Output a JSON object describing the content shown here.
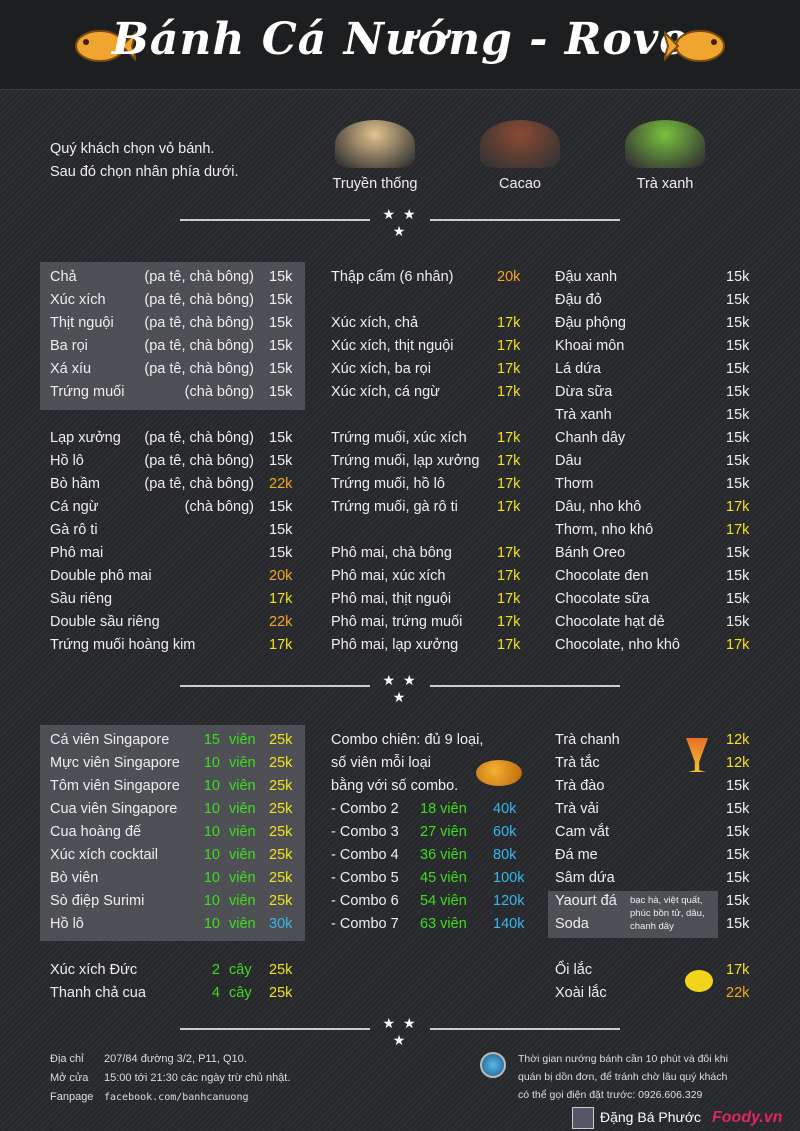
{
  "header": {
    "title": "Bánh Cá Nướng - Rove"
  },
  "intro": {
    "line1": "Quý khách chọn vỏ bánh.",
    "line2": "Sau đó chọn nhân phía dưới."
  },
  "crusts": [
    {
      "label": "Truyền thống",
      "color": "#e3c48e"
    },
    {
      "label": "Cacao",
      "color": "#8a4a32"
    },
    {
      "label": "Trà xanh",
      "color": "#79c23c"
    }
  ],
  "stars": "★ ★ ★",
  "section1": {
    "col1": [
      {
        "name": "Chả",
        "note": "(pa tê, chà bông)",
        "price": "15k",
        "tone": "white"
      },
      {
        "name": "Xúc xích",
        "note": "(pa tê, chà bông)",
        "price": "15k",
        "tone": "white"
      },
      {
        "name": "Thịt nguội",
        "note": "(pa tê, chà bông)",
        "price": "15k",
        "tone": "white"
      },
      {
        "name": "Ba rọi",
        "note": "(pa tê, chà bông)",
        "price": "15k",
        "tone": "white"
      },
      {
        "name": "Xá xíu",
        "note": "(pa tê, chà bông)",
        "price": "15k",
        "tone": "white"
      },
      {
        "name": "Trứng muối",
        "note": "(chà bông)",
        "price": "15k",
        "tone": "white"
      },
      {},
      {
        "name": "Lạp xưởng",
        "note": "(pa tê, chà bông)",
        "price": "15k",
        "tone": "white"
      },
      {
        "name": "Hồ lô",
        "note": "(pa tê, chà bông)",
        "price": "15k",
        "tone": "white"
      },
      {
        "name": "Bò hầm",
        "note": "(pa tê, chà bông)",
        "price": "22k",
        "tone": "orange"
      },
      {
        "name": "Cá ngừ",
        "note": "(chà bông)",
        "price": "15k",
        "tone": "white"
      },
      {
        "name": "Gà rô ti",
        "price": "15k",
        "tone": "white"
      },
      {
        "name": "Phô mai",
        "price": "15k",
        "tone": "white"
      },
      {
        "name": "Double phô mai",
        "price": "20k",
        "tone": "orange"
      },
      {
        "name": "Sầu riêng",
        "price": "17k",
        "tone": "yellow"
      },
      {
        "name": "Double sầu riêng",
        "price": "22k",
        "tone": "orange"
      },
      {
        "name": "Trứng muối hoàng kim",
        "price": "17k",
        "tone": "yellow"
      }
    ],
    "col2": [
      {
        "name": "Thập cẩm (6 nhân)",
        "price": "20k",
        "tone": "orange"
      },
      {},
      {
        "name": "Xúc xích, chả",
        "price": "17k",
        "tone": "yellow"
      },
      {
        "name": "Xúc xích, thịt nguội",
        "price": "17k",
        "tone": "yellow"
      },
      {
        "name": "Xúc xích, ba rọi",
        "price": "17k",
        "tone": "yellow"
      },
      {
        "name": "Xúc xích, cá ngừ",
        "price": "17k",
        "tone": "yellow"
      },
      {},
      {
        "name": "Trứng muối, xúc xích",
        "price": "17k",
        "tone": "yellow"
      },
      {
        "name": "Trứng muối, lạp xưởng",
        "price": "17k",
        "tone": "yellow"
      },
      {
        "name": "Trứng muối, hồ lô",
        "price": "17k",
        "tone": "yellow"
      },
      {
        "name": "Trứng muối, gà rô ti",
        "price": "17k",
        "tone": "yellow"
      },
      {},
      {
        "name": "Phô mai, chà bông",
        "price": "17k",
        "tone": "yellow"
      },
      {
        "name": "Phô mai, xúc xích",
        "price": "17k",
        "tone": "yellow"
      },
      {
        "name": "Phô mai, thịt nguội",
        "price": "17k",
        "tone": "yellow"
      },
      {
        "name": "Phô mai, trứng muối",
        "price": "17k",
        "tone": "yellow"
      },
      {
        "name": "Phô mai, lạp xưởng",
        "price": "17k",
        "tone": "yellow"
      }
    ],
    "col3": [
      {
        "name": "Đậu xanh",
        "price": "15k",
        "tone": "white"
      },
      {
        "name": "Đậu đỏ",
        "price": "15k",
        "tone": "white"
      },
      {
        "name": "Đậu phộng",
        "price": "15k",
        "tone": "white"
      },
      {
        "name": "Khoai môn",
        "price": "15k",
        "tone": "white"
      },
      {
        "name": "Lá dứa",
        "price": "15k",
        "tone": "white"
      },
      {
        "name": "Dừa sữa",
        "price": "15k",
        "tone": "white"
      },
      {
        "name": "Trà xanh",
        "price": "15k",
        "tone": "white"
      },
      {
        "name": "Chanh dây",
        "price": "15k",
        "tone": "white"
      },
      {
        "name": "Dâu",
        "price": "15k",
        "tone": "white"
      },
      {
        "name": "Thơm",
        "price": "15k",
        "tone": "white"
      },
      {
        "name": "Dâu, nho khô",
        "price": "17k",
        "tone": "yellow"
      },
      {
        "name": "Thơm, nho khô",
        "price": "17k",
        "tone": "yellow"
      },
      {
        "name": "Bánh Oreo",
        "price": "15k",
        "tone": "white"
      },
      {
        "name": "Chocolate đen",
        "price": "15k",
        "tone": "white"
      },
      {
        "name": "Chocolate sữa",
        "price": "15k",
        "tone": "white"
      },
      {
        "name": "Chocolate hạt dẻ",
        "price": "15k",
        "tone": "white"
      },
      {
        "name": "Chocolate, nho khô",
        "price": "17k",
        "tone": "yellow"
      }
    ]
  },
  "section2": {
    "col1": [
      {
        "name": "Cá viên Singapore",
        "qty": "15",
        "unit": "viên",
        "price": "25k",
        "tone": "yellow"
      },
      {
        "name": "Mực viên Singapore",
        "qty": "10",
        "unit": "viên",
        "price": "25k",
        "tone": "yellow"
      },
      {
        "name": "Tôm viên Singapore",
        "qty": "10",
        "unit": "viên",
        "price": "25k",
        "tone": "yellow"
      },
      {
        "name": "Cua viên Singapore",
        "qty": "10",
        "unit": "viên",
        "price": "25k",
        "tone": "yellow"
      },
      {
        "name": "Cua hoàng đế",
        "qty": "10",
        "unit": "viên",
        "price": "25k",
        "tone": "yellow"
      },
      {
        "name": "Xúc xích cocktail",
        "qty": "10",
        "unit": "viên",
        "price": "25k",
        "tone": "yellow"
      },
      {
        "name": "Bò viên",
        "qty": "10",
        "unit": "viên",
        "price": "25k",
        "tone": "yellow"
      },
      {
        "name": "Sò điệp Surimi",
        "qty": "10",
        "unit": "viên",
        "price": "25k",
        "tone": "yellow"
      },
      {
        "name": "Hồ lô",
        "qty": "10",
        "unit": "viên",
        "price": "30k",
        "tone": "cyan"
      },
      {},
      {
        "name": "Xúc xích Đức",
        "qty": "2",
        "unit": "cây",
        "price": "25k",
        "tone": "yellow"
      },
      {
        "name": "Thanh chả cua",
        "qty": "4",
        "unit": "cây",
        "price": "25k",
        "tone": "yellow"
      }
    ],
    "combo_intro": [
      "Combo chiên: đủ 9 loại,",
      "số viên mỗi loại",
      "bằng với số combo."
    ],
    "combos": [
      {
        "name": "- Combo 2",
        "count": "18 viên",
        "price": "40k"
      },
      {
        "name": "- Combo 3",
        "count": "27 viên",
        "price": "60k"
      },
      {
        "name": "- Combo 4",
        "count": "36 viên",
        "price": "80k"
      },
      {
        "name": "- Combo 5",
        "count": "45 viên",
        "price": "100k"
      },
      {
        "name": "- Combo 6",
        "count": "54 viên",
        "price": "120k"
      },
      {
        "name": "- Combo 7",
        "count": "63 viên",
        "price": "140k"
      }
    ],
    "col3": [
      {
        "name": "Trà chanh",
        "price": "12k",
        "tone": "yellow"
      },
      {
        "name": "Trà tắc",
        "price": "12k",
        "tone": "yellow"
      },
      {
        "name": "Trà đào",
        "price": "15k",
        "tone": "white"
      },
      {
        "name": "Trà vải",
        "price": "15k",
        "tone": "white"
      },
      {
        "name": "Cam vắt",
        "price": "15k",
        "tone": "white"
      },
      {
        "name": "Đá me",
        "price": "15k",
        "tone": "white"
      },
      {
        "name": "Sâm dứa",
        "price": "15k",
        "tone": "white"
      },
      {
        "name": "Yaourt đá",
        "price": "15k",
        "tone": "white"
      },
      {
        "name": "Soda",
        "price": "15k",
        "tone": "white"
      },
      {},
      {
        "name": "Ổi lắc",
        "price": "17k",
        "tone": "yellow"
      },
      {
        "name": "Xoài lắc",
        "price": "22k",
        "tone": "orange"
      }
    ],
    "flavors": [
      "bạc hà, việt quất,",
      "phúc bồn tử, dâu,",
      "chanh dây"
    ]
  },
  "footer": {
    "address_label": "Địa chỉ",
    "address": "207/84 đường 3/2, P11, Q10.",
    "hours_label": "Mở cửa",
    "hours": "15:00 tới 21:30 các ngày trừ chủ nhật.",
    "fanpage_label": "Fanpage",
    "fanpage": "facebook.com/banhcanuong",
    "notice": [
      "Thời gian nướng bánh cần 10 phút và đôi khi",
      "quán bị dồn đơn, để tránh chờ lâu quý khách",
      "có thể gọi điện đặt trước: 0926.606.329"
    ],
    "uploader": "Đặng Bá Phước",
    "watermark": "Foody.vn"
  }
}
